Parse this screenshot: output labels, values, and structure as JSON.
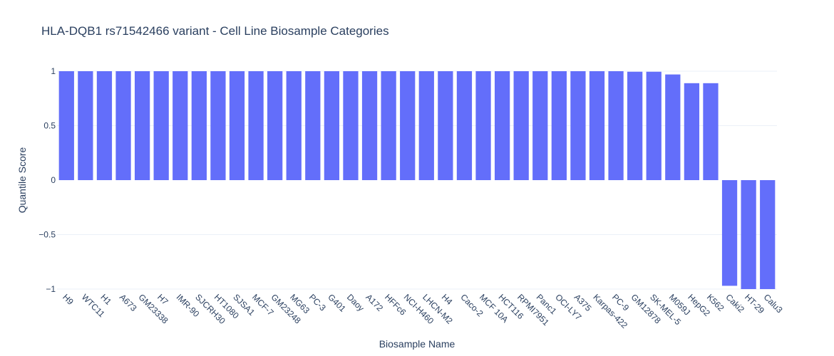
{
  "chart_data": {
    "type": "bar",
    "title": "HLA-DQB1 rs71542466 variant - Cell Line Biosample Categories",
    "xlabel": "Biosample Name",
    "ylabel": "Quantile Score",
    "ylim": [
      -1,
      1
    ],
    "yticks": [
      {
        "value": 1,
        "label": "1"
      },
      {
        "value": 0.5,
        "label": "0.5"
      },
      {
        "value": 0,
        "label": "0"
      },
      {
        "value": -0.5,
        "label": "−0.5"
      },
      {
        "value": -1,
        "label": "−1"
      }
    ],
    "grid": true,
    "bar_color": "#636efa",
    "categories": [
      "H9",
      "WTC11",
      "H1",
      "A673",
      "GM23338",
      "H7",
      "IMR-90",
      "SJCRH30",
      "HT1080",
      "SJSA1",
      "MCF-7",
      "GM23248",
      "MG63",
      "PC-3",
      "G401",
      "Daoy",
      "A172",
      "HFFc6",
      "NCI-H460",
      "LHCN-M2",
      "H4",
      "Caco-2",
      "MCF 10A",
      "HCT116",
      "RPMI7951",
      "Panc1",
      "OCI-LY7",
      "A375",
      "Karpas-422",
      "PC-9",
      "GM12878",
      "SK-MEL-5",
      "M059J",
      "HepG2",
      "K562",
      "Caki2",
      "HT-29",
      "Calu3"
    ],
    "values": [
      1,
      1,
      1,
      1,
      1,
      1,
      1,
      1,
      1,
      1,
      1,
      1,
      1,
      1,
      1,
      1,
      1,
      1,
      1,
      1,
      1,
      1,
      1,
      1,
      1,
      1,
      1,
      1,
      1,
      1,
      0.995,
      0.995,
      0.97,
      0.89,
      0.89,
      -0.97,
      -1,
      -1
    ]
  }
}
